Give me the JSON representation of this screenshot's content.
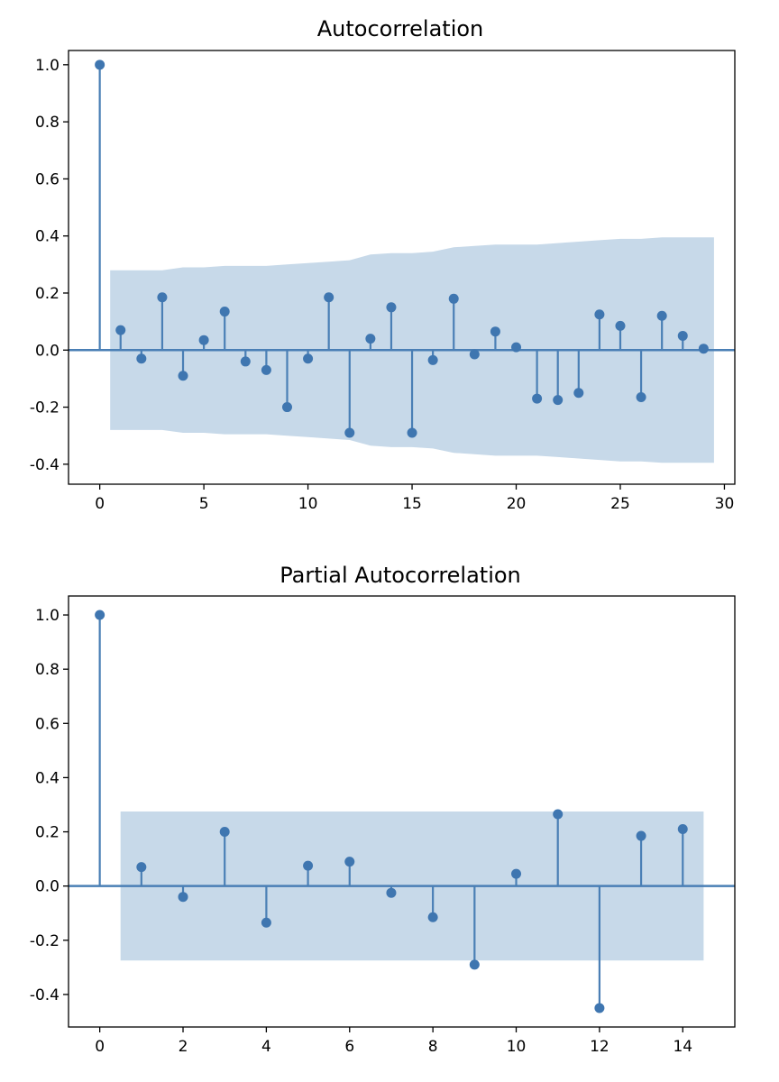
{
  "chart_data": [
    {
      "type": "stem",
      "title": "Autocorrelation",
      "xlabel": "",
      "ylabel": "",
      "xlim": [
        -1.5,
        30.5
      ],
      "ylim": [
        -0.47,
        1.05
      ],
      "xticks": [
        0,
        5,
        10,
        15,
        20,
        25,
        30
      ],
      "xtick_labels": [
        "0",
        "5",
        "10",
        "15",
        "20",
        "25",
        "30"
      ],
      "yticks": [
        1.0,
        0.8,
        0.6,
        0.4,
        0.2,
        0.0,
        -0.2,
        -0.4
      ],
      "ytick_labels": [
        "1.0",
        "0.8",
        "0.6",
        "0.4",
        "0.2",
        "0.0",
        "-0.2",
        "-0.4"
      ],
      "lags": [
        0,
        1,
        2,
        3,
        4,
        5,
        6,
        7,
        8,
        9,
        10,
        11,
        12,
        13,
        14,
        15,
        16,
        17,
        18,
        19,
        20,
        21,
        22,
        23,
        24,
        25,
        26,
        27,
        28,
        29
      ],
      "values": [
        1.0,
        0.07,
        -0.03,
        0.185,
        -0.09,
        0.035,
        0.135,
        -0.04,
        -0.07,
        -0.2,
        -0.03,
        0.185,
        -0.29,
        0.04,
        0.15,
        -0.29,
        -0.035,
        0.18,
        -0.015,
        0.065,
        0.01,
        -0.17,
        -0.175,
        -0.15,
        0.125,
        0.085,
        -0.165,
        0.12,
        0.05,
        0.005
      ],
      "confint": {
        "x": [
          0.5,
          1,
          2,
          3,
          4,
          5,
          6,
          7,
          8,
          9,
          10,
          11,
          12,
          13,
          14,
          15,
          16,
          17,
          18,
          19,
          20,
          21,
          22,
          23,
          24,
          25,
          26,
          27,
          28,
          29,
          29.5
        ],
        "upper": [
          0.28,
          0.28,
          0.28,
          0.28,
          0.29,
          0.29,
          0.295,
          0.295,
          0.295,
          0.3,
          0.305,
          0.31,
          0.315,
          0.335,
          0.34,
          0.34,
          0.345,
          0.36,
          0.365,
          0.37,
          0.37,
          0.37,
          0.375,
          0.38,
          0.385,
          0.39,
          0.39,
          0.395,
          0.395,
          0.395,
          0.395
        ]
      },
      "colors": {
        "stem": "#4a7fb5",
        "marker": "#3f76b0",
        "band": "#c7d9e9",
        "zero_line": "#4a7fb5"
      }
    },
    {
      "type": "stem",
      "title": "Partial Autocorrelation",
      "xlabel": "",
      "ylabel": "",
      "xlim": [
        -0.75,
        15.25
      ],
      "ylim": [
        -0.52,
        1.07
      ],
      "xticks": [
        0,
        2,
        4,
        6,
        8,
        10,
        12,
        14
      ],
      "xtick_labels": [
        "0",
        "2",
        "4",
        "6",
        "8",
        "10",
        "12",
        "14"
      ],
      "yticks": [
        1.0,
        0.8,
        0.6,
        0.4,
        0.2,
        0.0,
        -0.2,
        -0.4
      ],
      "ytick_labels": [
        "1.0",
        "0.8",
        "0.6",
        "0.4",
        "0.2",
        "0.0",
        "-0.2",
        "-0.4"
      ],
      "lags": [
        0,
        1,
        2,
        3,
        4,
        5,
        6,
        7,
        8,
        9,
        10,
        11,
        12,
        13,
        14
      ],
      "values": [
        1.0,
        0.07,
        -0.04,
        0.2,
        -0.135,
        0.075,
        0.09,
        -0.025,
        -0.115,
        -0.29,
        0.045,
        0.265,
        -0.45,
        0.185,
        0.21
      ],
      "confint": {
        "x": [
          0.5,
          14.5
        ],
        "upper": [
          0.275,
          0.275
        ]
      },
      "colors": {
        "stem": "#4a7fb5",
        "marker": "#3f76b0",
        "band": "#c7d9e9",
        "zero_line": "#4a7fb5"
      }
    }
  ]
}
